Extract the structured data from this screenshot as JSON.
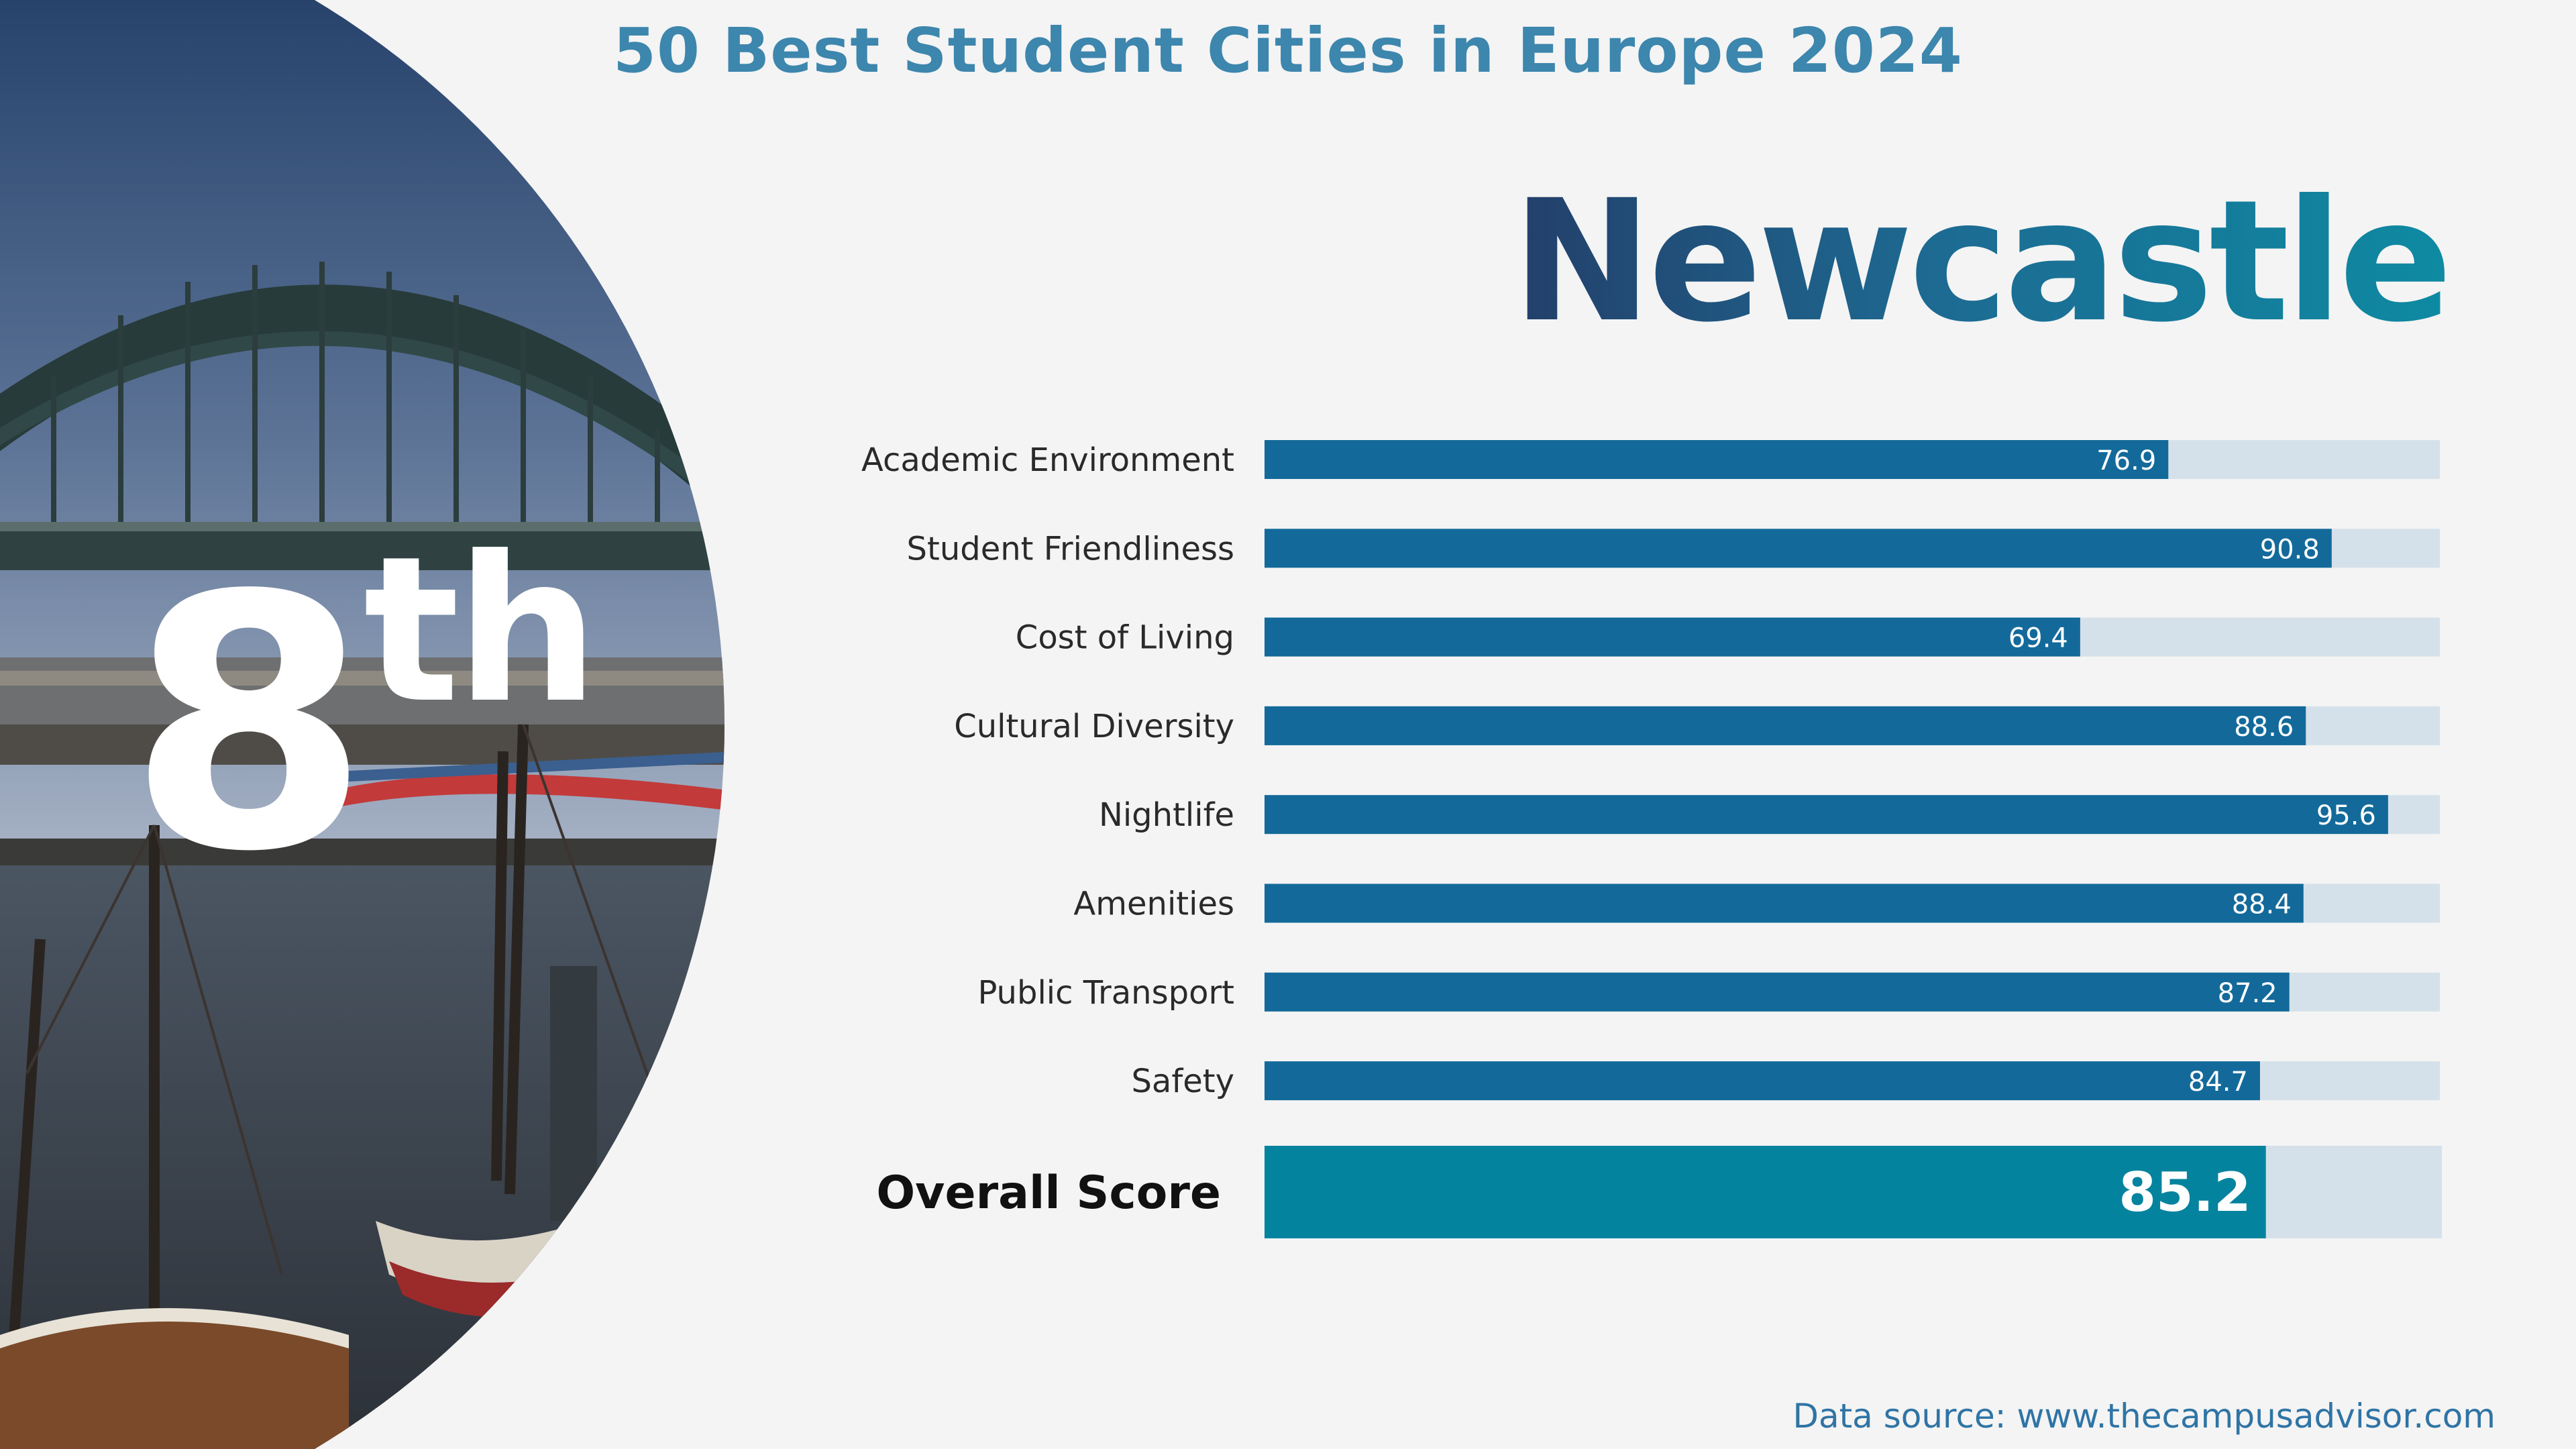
{
  "title": "50 Best Student Cities in Europe 2024",
  "rank": {
    "number": "8",
    "suffix": "th"
  },
  "city": "Newcastle",
  "footer": "Data source: www.thecampusadvisor.com",
  "colors": {
    "title": "#3d86ad",
    "bar_fill": "#136a9a",
    "bar_track": "#d5e1ea",
    "overall_fill": "#04839e",
    "label_text": "#2a2a2a",
    "city_gradient": [
      "#233f6a",
      "#0e8aa2"
    ]
  },
  "chart_data": {
    "type": "bar",
    "orientation": "horizontal",
    "xlim": [
      0,
      100
    ],
    "categories": [
      "Academic Environment",
      "Student Friendliness",
      "Cost of Living",
      "Cultural Diversity",
      "Nightlife",
      "Amenities",
      "Public Transport",
      "Safety"
    ],
    "values": [
      76.9,
      90.8,
      69.4,
      88.6,
      95.6,
      88.4,
      87.2,
      84.7
    ],
    "overall": {
      "label": "Overall Score",
      "value": 85.2
    }
  }
}
